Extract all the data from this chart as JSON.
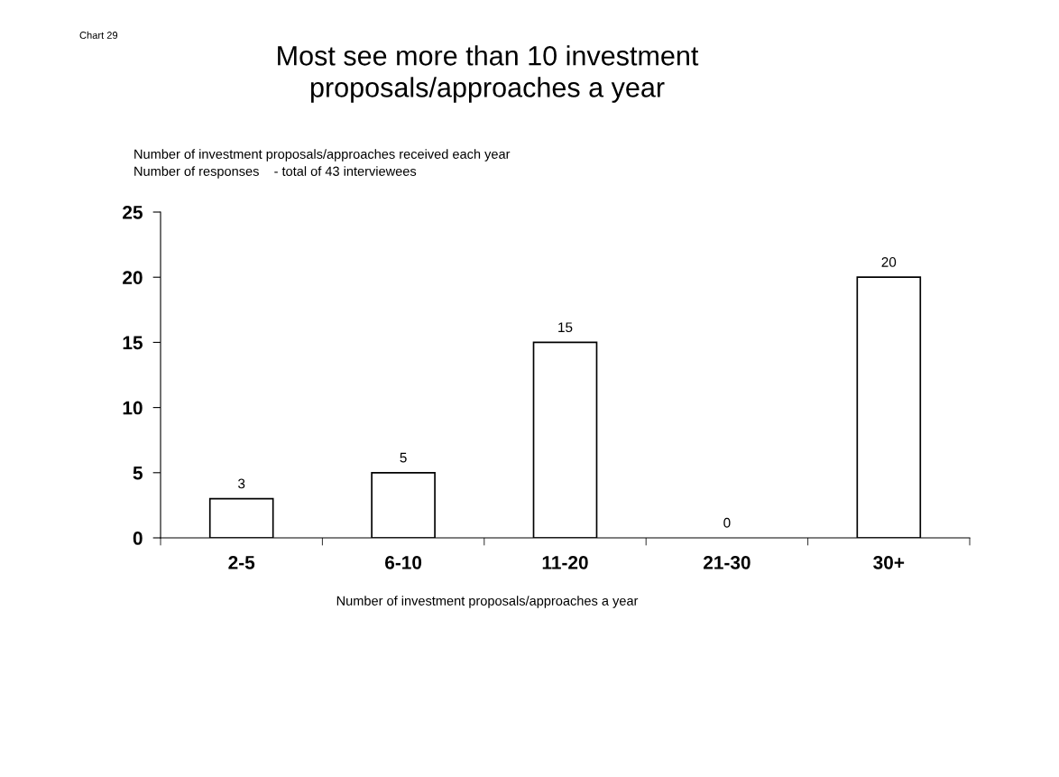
{
  "chart_data": {
    "type": "bar",
    "title": "Most see more than 10 investment\nproposals/approaches a year",
    "subtitle": "Number of investment proposals/approaches received each year",
    "ylabel": "Number of responses    - total of 43 interviewees",
    "xlabel": "Number of investment proposals/approaches a year",
    "annotations": [
      "Chart 29"
    ],
    "categories": [
      "2-5",
      "6-10",
      "11-20",
      "21-30",
      "30+"
    ],
    "values": [
      3,
      5,
      15,
      0,
      20
    ],
    "color": "#ffffff",
    "ylim": [
      0,
      25
    ],
    "yticks": [
      0,
      5,
      10,
      15,
      20,
      25
    ],
    "data_labels": true,
    "grid": false,
    "legend": false
  }
}
